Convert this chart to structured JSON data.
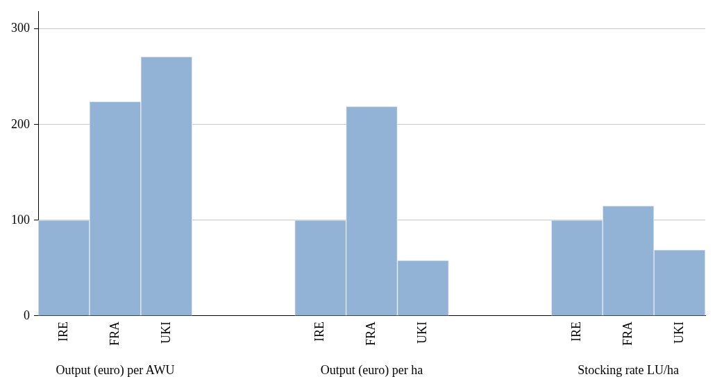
{
  "chart_data": {
    "type": "bar",
    "categories": [
      "IRE",
      "FRA",
      "UKI",
      null,
      null,
      "IRE",
      "FRA",
      "UKI",
      null,
      null,
      "IRE",
      "FRA",
      "UKI"
    ],
    "values": [
      100,
      224,
      271,
      null,
      null,
      100,
      219,
      58,
      null,
      null,
      100,
      115,
      69
    ],
    "color": "#92b2d6",
    "ylim": [
      0,
      318
    ],
    "yticks": [
      0,
      100,
      200,
      300
    ],
    "grid": "y",
    "legend": false,
    "annotations": [
      "Output (euro) per AWU",
      "Output (euro) per ha",
      "Stocking rate LU/ha"
    ]
  }
}
